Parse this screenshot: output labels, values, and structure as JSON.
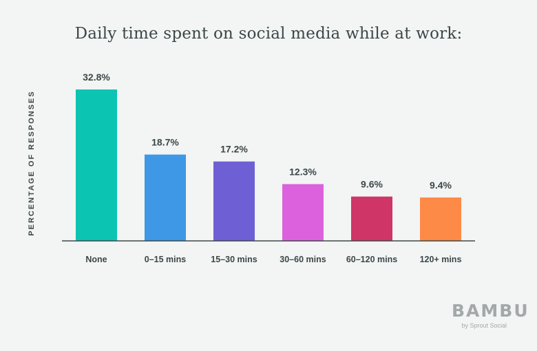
{
  "chart_data": {
    "type": "bar",
    "title": "Daily time spent on social media while at work:",
    "ylabel": "PERCENTAGE OF RESPONSES",
    "xlabel": "",
    "categories": [
      "None",
      "0–15 mins",
      "15–30 mins",
      "30–60 mins",
      "60–120 mins",
      "120+ mins"
    ],
    "values": [
      32.8,
      18.7,
      17.2,
      12.3,
      9.6,
      9.4
    ],
    "data_labels": [
      "32.8%",
      "18.7%",
      "17.2%",
      "12.3%",
      "9.6%",
      "9.4%"
    ],
    "colors": [
      "#0cc4b2",
      "#3f98e5",
      "#6f5fd4",
      "#db62dc",
      "#cf3567",
      "#fe8a47"
    ],
    "ylim": [
      0,
      33
    ],
    "grid": false,
    "legend": "none"
  },
  "logo": {
    "main": "BAMBU",
    "sub": "by Sprout Social"
  }
}
